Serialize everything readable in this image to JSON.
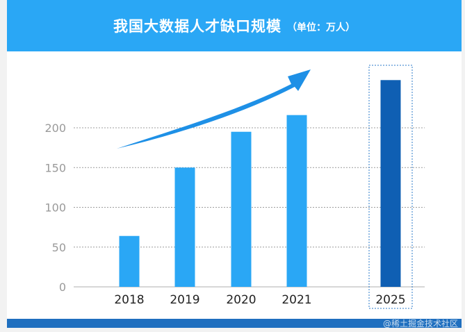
{
  "header": {
    "title": "我国大数据人才缺口规模",
    "unit": "（单位：万人）"
  },
  "watermark": "@稀土掘金技术社区",
  "colors": {
    "header_bg": "#2aa7f5",
    "bar": "#2aa7f5",
    "bar_highlight": "#0f5fb3",
    "footer_bg": "#1f6fbf",
    "arrow": "#1e90e6"
  },
  "chart_data": {
    "type": "bar",
    "categories": [
      "2018",
      "2019",
      "2020",
      "2021",
      "2025"
    ],
    "values": [
      64,
      150,
      195,
      216,
      260
    ],
    "highlight_category": "2025",
    "yticks": [
      0,
      50,
      100,
      150,
      200
    ],
    "ylim": [
      0,
      280
    ],
    "grid": true,
    "trend_arrow": true,
    "title": "我国大数据人才缺口规模",
    "xlabel": "",
    "ylabel": ""
  }
}
